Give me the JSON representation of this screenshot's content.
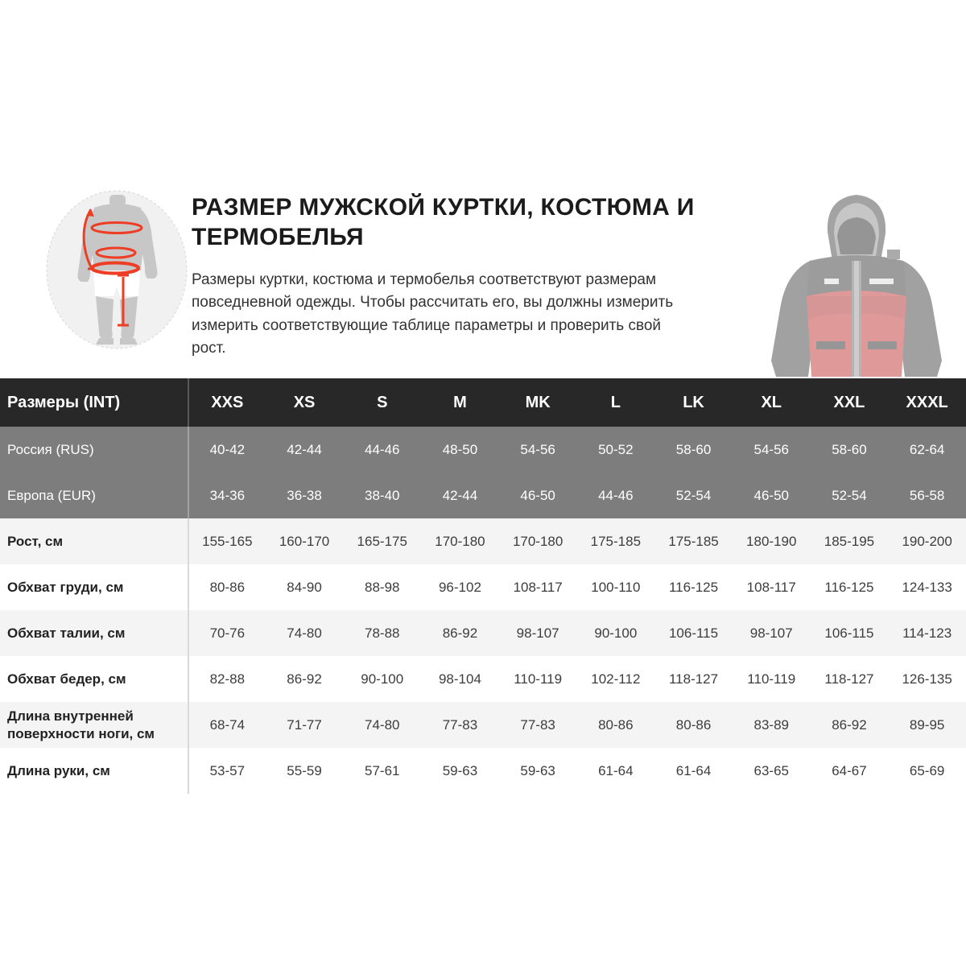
{
  "intro": {
    "title": "РАЗМЕР МУЖСКОЙ КУРТКИ, КОСТЮМА И\nТЕРМОБЕЛЬЯ",
    "description": "Размеры куртки, костюма и термобелья соответствуют размерам\nповседневной одежды. Чтобы рассчитать его, вы должны измерить\nизмерить соответствующие таблице параметры и проверить свой\nрост.",
    "icons": {
      "body_measurement_diagram": "silhouette of male body with red chest/waist/hip measurement ellipses, arm-length arrow and inner-leg line",
      "jacket_photo": "faded red and black hooded fishing jacket"
    }
  },
  "colors": {
    "header_bg": "#282828",
    "gray_row_bg": "#7d7d7d",
    "stripe_row_bg": "#f4f4f4",
    "plain_row_bg": "#ffffff",
    "accent_red": "#ee3d25",
    "text_dark": "#222222",
    "text_light": "#ffffff"
  },
  "size_chart": {
    "header": {
      "label": "Размеры (INT)",
      "sizes": [
        "XXS",
        "XS",
        "S",
        "M",
        "MK",
        "L",
        "LK",
        "XL",
        "XXL",
        "XXXL"
      ]
    },
    "rows": [
      {
        "label": "Россия (RUS)",
        "style": "gray",
        "values": [
          "40-42",
          "42-44",
          "44-46",
          "48-50",
          "54-56",
          "50-52",
          "58-60",
          "54-56",
          "58-60",
          "62-64"
        ]
      },
      {
        "label": "Европа (EUR)",
        "style": "gray",
        "values": [
          "34-36",
          "36-38",
          "38-40",
          "42-44",
          "46-50",
          "44-46",
          "52-54",
          "46-50",
          "52-54",
          "56-58"
        ]
      },
      {
        "label": "Рост, см",
        "style": "stripe",
        "values": [
          "155-165",
          "160-170",
          "165-175",
          "170-180",
          "170-180",
          "175-185",
          "175-185",
          "180-190",
          "185-195",
          "190-200"
        ]
      },
      {
        "label": "Обхват груди, см",
        "style": "plain",
        "values": [
          "80-86",
          "84-90",
          "88-98",
          "96-102",
          "108-117",
          "100-110",
          "116-125",
          "108-117",
          "116-125",
          "124-133"
        ]
      },
      {
        "label": "Обхват талии, см",
        "style": "stripe",
        "values": [
          "70-76",
          "74-80",
          "78-88",
          "86-92",
          "98-107",
          "90-100",
          "106-115",
          "98-107",
          "106-115",
          "114-123"
        ]
      },
      {
        "label": "Обхват бедер, см",
        "style": "plain",
        "values": [
          "82-88",
          "86-92",
          "90-100",
          "98-104",
          "110-119",
          "102-112",
          "118-127",
          "110-119",
          "118-127",
          "126-135"
        ]
      },
      {
        "label": "Длина внутренней поверхности ноги, см",
        "style": "stripe",
        "values": [
          "68-74",
          "71-77",
          "74-80",
          "77-83",
          "77-83",
          "80-86",
          "80-86",
          "83-89",
          "86-92",
          "89-95"
        ]
      },
      {
        "label": "Длина руки, см",
        "style": "plain",
        "values": [
          "53-57",
          "55-59",
          "57-61",
          "59-63",
          "59-63",
          "61-64",
          "61-64",
          "63-65",
          "64-67",
          "65-69"
        ]
      }
    ]
  }
}
